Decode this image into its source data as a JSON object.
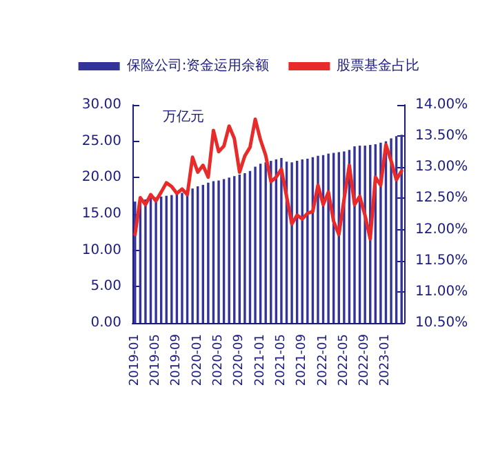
{
  "chart_data": {
    "type": "bar",
    "categories": [
      "2019-01",
      null,
      null,
      null,
      "2019-05",
      null,
      null,
      null,
      "2019-09",
      null,
      null,
      null,
      "2020-01",
      null,
      null,
      null,
      "2020-05",
      null,
      null,
      null,
      "2020-09",
      null,
      null,
      null,
      "2021-01",
      null,
      null,
      null,
      "2021-05",
      null,
      null,
      null,
      "2021-09",
      null,
      null,
      null,
      "2022-01",
      null,
      null,
      null,
      "2022-05",
      null,
      null,
      null,
      "2022-09",
      null,
      null,
      null,
      "2023-01",
      null,
      null,
      null
    ],
    "series": [
      {
        "name": "保险公司:资金运用余额",
        "color": "#333399",
        "values": [
          16.7,
          16.9,
          17.0,
          17.2,
          17.3,
          17.4,
          17.5,
          17.6,
          17.8,
          17.9,
          18.1,
          18.5,
          18.8,
          19.0,
          19.3,
          19.5,
          19.6,
          19.8,
          20.0,
          20.2,
          20.4,
          20.6,
          20.9,
          21.5,
          21.9,
          22.1,
          22.3,
          22.5,
          22.7,
          22.2,
          22.1,
          22.3,
          22.5,
          22.6,
          22.8,
          23.0,
          23.1,
          23.3,
          23.4,
          23.5,
          23.6,
          23.8,
          24.3,
          24.4,
          24.4,
          24.5,
          24.6,
          24.8,
          25.0,
          25.4,
          25.7,
          25.9
        ]
      },
      {
        "name": "股票基金占比",
        "type": "line",
        "axis": "y2",
        "color": "#e82a2a",
        "values": [
          11.92,
          12.51,
          12.4,
          12.56,
          12.46,
          12.6,
          12.75,
          12.69,
          12.58,
          12.65,
          12.56,
          13.16,
          12.92,
          13.03,
          12.84,
          13.59,
          13.25,
          13.34,
          13.66,
          13.46,
          12.92,
          13.18,
          13.32,
          13.77,
          13.44,
          13.19,
          12.77,
          12.84,
          12.97,
          12.53,
          12.09,
          12.23,
          12.17,
          12.26,
          12.29,
          12.71,
          12.4,
          12.6,
          12.13,
          11.92,
          12.49,
          13.03,
          12.4,
          12.53,
          12.23,
          11.85,
          12.84,
          12.71,
          13.36,
          13.1,
          12.8,
          12.94
        ]
      }
    ],
    "ylim": [
      0,
      30
    ],
    "yticks": [
      {
        "value": 0,
        "label": "0.00"
      },
      {
        "value": 5,
        "label": "5.00"
      },
      {
        "value": 10,
        "label": "10.00"
      },
      {
        "value": 15,
        "label": "15.00"
      },
      {
        "value": 20,
        "label": "20.00"
      },
      {
        "value": 25,
        "label": "25.00"
      },
      {
        "value": 30,
        "label": "30.00"
      }
    ],
    "y2lim": [
      10.5,
      14
    ],
    "y2ticks": [
      {
        "value": 10.5,
        "label": "10.50%"
      },
      {
        "value": 11,
        "label": "11.00%"
      },
      {
        "value": 11.5,
        "label": "11.50%"
      },
      {
        "value": 12,
        "label": "12.00%"
      },
      {
        "value": 12.5,
        "label": "12.50%"
      },
      {
        "value": 13,
        "label": "13.00%"
      },
      {
        "value": 13.5,
        "label": "13.50%"
      },
      {
        "value": 14,
        "label": "14.00%"
      }
    ],
    "annotations": [
      "万亿元"
    ],
    "legend": "top",
    "grid": false,
    "marker": "none",
    "line_style": "solid"
  }
}
